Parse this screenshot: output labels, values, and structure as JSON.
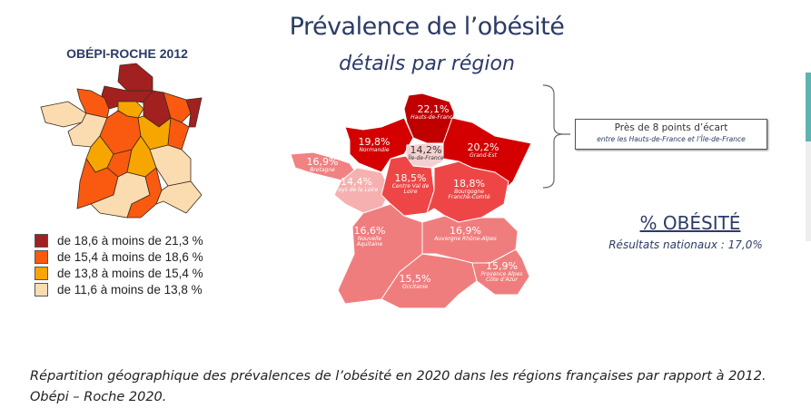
{
  "header": {
    "title": "Prévalence de l’obésité",
    "subtitle": "détails par région"
  },
  "map_2012": {
    "title": "OBÉPI-ROCHE 2012",
    "legend": [
      {
        "label": "de 18,6 à moins de 21,3 %",
        "color": "#a32020"
      },
      {
        "label": "de 15,4 à moins de 18,6 %",
        "color": "#f95a10"
      },
      {
        "label": "de 13,8 à moins de 15,4 %",
        "color": "#f7a600"
      },
      {
        "label": "de 11,6 à moins de 13,8 %",
        "color": "#fbdcb0"
      }
    ]
  },
  "map_2020": {
    "regions": [
      {
        "name": "Hauts-de-France",
        "value": "22,1%"
      },
      {
        "name": "Normandie",
        "value": "19,8%"
      },
      {
        "name": "Île-de-France",
        "value": "14,2%"
      },
      {
        "name": "Grand-Est",
        "value": "20,2%"
      },
      {
        "name": "Bretagne",
        "value": "16,9%"
      },
      {
        "name": "Pays de la Loire",
        "value": "14,4%"
      },
      {
        "name": "Centre Val de Loire",
        "value": "18,5%"
      },
      {
        "name": "Bourgogne Franche-Comté",
        "value": "18,8%"
      },
      {
        "name": "Nouvelle Aquitaine",
        "value": "16,6%"
      },
      {
        "name": "Auvergne Rhône-Alpes",
        "value": "16,9%"
      },
      {
        "name": "Occitanie",
        "value": "15,5%"
      },
      {
        "name": "Provence Alpes Côte d’Azur",
        "value": "15,9%"
      }
    ]
  },
  "note": {
    "line1": "Près de 8 points d’écart",
    "line2": "entre les Hauts-de-France et l’Île-de-France"
  },
  "obesity": {
    "title": "% OBÉSITÉ",
    "national": "Résultats nationaux : 17,0%"
  },
  "caption": {
    "line1": "Répartition géographique des prévalences de l’obésité en 2020 dans les régions françaises par rapport à 2012.",
    "line2": "Obépi – Roche 2020."
  }
}
